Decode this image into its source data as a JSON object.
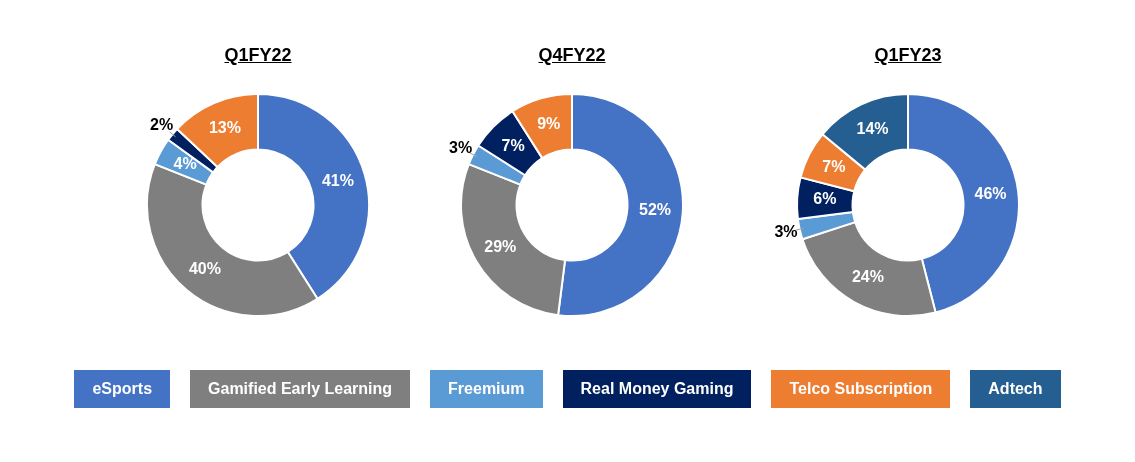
{
  "chart_data": [
    {
      "type": "donut",
      "title": "Q1FY22",
      "categories": [
        null,
        null,
        null,
        null,
        null
      ],
      "values": [
        41,
        40,
        4,
        2,
        13
      ],
      "value_labels": [
        "41%",
        "40%",
        "4%",
        "2%",
        "13%"
      ],
      "colors": [
        "#4472c4",
        "#7f7f7f",
        "#5b9bd5",
        "#002060",
        "#ed7d31"
      ],
      "legend": false
    },
    {
      "type": "donut",
      "title": "Q4FY22",
      "categories": [
        null,
        null,
        null,
        null,
        null
      ],
      "values": [
        52,
        29,
        3,
        7,
        9
      ],
      "value_labels": [
        "52%",
        "29%",
        "3%",
        "7%",
        "9%"
      ],
      "colors": [
        "#4472c4",
        "#7f7f7f",
        "#5b9bd5",
        "#002060",
        "#ed7d31"
      ],
      "legend": false
    },
    {
      "type": "donut",
      "title": "Q1FY23",
      "categories": [
        "eSports",
        "Gamified Early Learning",
        "Freemium",
        "Real Money Gaming",
        "Telco Subscription",
        "Adtech"
      ],
      "values": [
        46,
        24,
        3,
        6,
        7,
        14
      ],
      "value_labels": [
        "46%",
        "24%",
        "3%",
        "6%",
        "7%",
        "14%"
      ],
      "colors": [
        "#4472c4",
        "#7f7f7f",
        "#5b9bd5",
        "#002060",
        "#ed7d31",
        "#255e91"
      ],
      "legend": "bottom"
    }
  ]
}
